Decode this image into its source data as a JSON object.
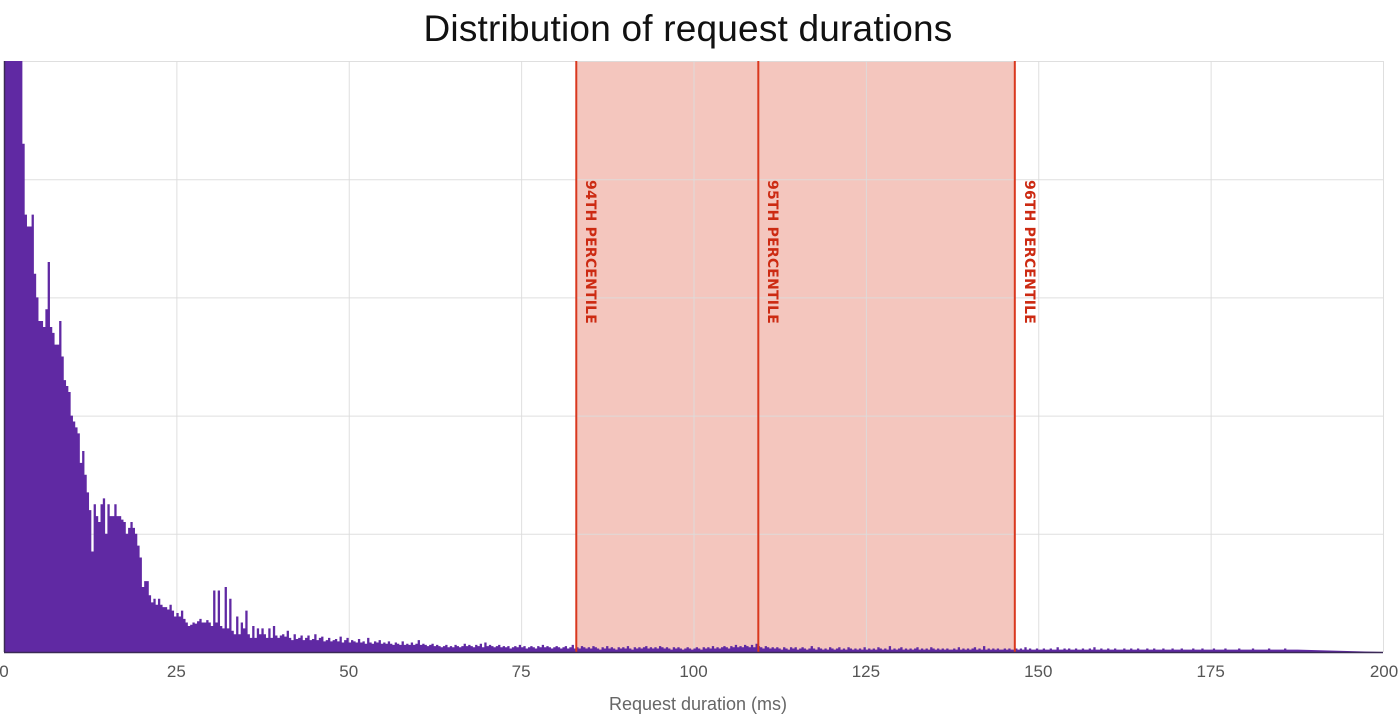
{
  "chart_data": {
    "type": "bar",
    "subtype": "histogram",
    "title": "Distribution of request durations",
    "xlabel": "Request duration (ms)",
    "ylabel": "",
    "xlim": [
      0,
      200
    ],
    "ylim": [
      0,
      5
    ],
    "y_units": "relative count (gridline units; y tick labels not shown)",
    "grid": true,
    "legend": null,
    "x_ticks": [
      "0",
      "25",
      "50",
      "75",
      "100",
      "125",
      "150",
      "175",
      "200"
    ],
    "x_tick_values": [
      0,
      25,
      50,
      75,
      100,
      125,
      150,
      175,
      200
    ],
    "y_gridlines": 5,
    "bin_width_ms": 0.3333,
    "bin_start_ms": 0,
    "bar_color": "#6029a3",
    "values": [
      9,
      9,
      9,
      9,
      9,
      9,
      9,
      9,
      4.3,
      3.7,
      3.6,
      3.6,
      3.7,
      3.2,
      3.0,
      2.8,
      2.8,
      2.75,
      2.9,
      3.3,
      2.75,
      2.7,
      2.6,
      2.6,
      2.8,
      2.5,
      2.3,
      2.25,
      2.2,
      2.0,
      1.95,
      1.9,
      1.85,
      1.6,
      1.7,
      1.5,
      1.35,
      1.2,
      0.85,
      1.25,
      1.15,
      1.1,
      1.25,
      1.3,
      1.0,
      1.25,
      1.15,
      1.15,
      1.25,
      1.15,
      1.15,
      1.12,
      1.1,
      1.0,
      1.05,
      1.1,
      1.05,
      1.0,
      0.9,
      0.8,
      0.55,
      0.6,
      0.6,
      0.48,
      0.42,
      0.45,
      0.4,
      0.45,
      0.4,
      0.38,
      0.38,
      0.36,
      0.4,
      0.35,
      0.3,
      0.33,
      0.3,
      0.35,
      0.28,
      0.25,
      0.22,
      0.23,
      0.25,
      0.24,
      0.26,
      0.28,
      0.25,
      0.25,
      0.27,
      0.25,
      0.22,
      0.52,
      0.25,
      0.52,
      0.22,
      0.2,
      0.55,
      0.2,
      0.45,
      0.18,
      0.15,
      0.3,
      0.15,
      0.25,
      0.2,
      0.35,
      0.15,
      0.12,
      0.22,
      0.12,
      0.2,
      0.15,
      0.2,
      0.15,
      0.12,
      0.2,
      0.12,
      0.22,
      0.14,
      0.12,
      0.14,
      0.15,
      0.13,
      0.18,
      0.12,
      0.1,
      0.15,
      0.11,
      0.12,
      0.14,
      0.1,
      0.12,
      0.14,
      0.1,
      0.11,
      0.15,
      0.1,
      0.12,
      0.13,
      0.09,
      0.1,
      0.12,
      0.09,
      0.1,
      0.11,
      0.09,
      0.13,
      0.08,
      0.1,
      0.12,
      0.08,
      0.1,
      0.09,
      0.08,
      0.11,
      0.08,
      0.09,
      0.07,
      0.12,
      0.08,
      0.07,
      0.09,
      0.08,
      0.1,
      0.07,
      0.08,
      0.07,
      0.09,
      0.07,
      0.06,
      0.08,
      0.07,
      0.06,
      0.09,
      0.06,
      0.07,
      0.06,
      0.08,
      0.06,
      0.07,
      0.1,
      0.06,
      0.07,
      0.06,
      0.05,
      0.06,
      0.07,
      0.05,
      0.06,
      0.05,
      0.04,
      0.05,
      0.06,
      0.04,
      0.05,
      0.04,
      0.06,
      0.05,
      0.04,
      0.05,
      0.07,
      0.05,
      0.06,
      0.05,
      0.04,
      0.06,
      0.05,
      0.07,
      0.04,
      0.08,
      0.05,
      0.06,
      0.05,
      0.04,
      0.05,
      0.06,
      0.04,
      0.05,
      0.04,
      0.05,
      0.03,
      0.04,
      0.05,
      0.04,
      0.06,
      0.04,
      0.05,
      0.03,
      0.04,
      0.05,
      0.04,
      0.03,
      0.05,
      0.04,
      0.06,
      0.04,
      0.05,
      0.04,
      0.03,
      0.04,
      0.05,
      0.04,
      0.03,
      0.04,
      0.05,
      0.03,
      0.04,
      0.06,
      0.03,
      0.04,
      0.03,
      0.05,
      0.04,
      0.03,
      0.04,
      0.03,
      0.05,
      0.04,
      0.03,
      0.02,
      0.04,
      0.03,
      0.05,
      0.03,
      0.04,
      0.03,
      0.02,
      0.04,
      0.03,
      0.04,
      0.03,
      0.05,
      0.03,
      0.02,
      0.04,
      0.03,
      0.04,
      0.03,
      0.04,
      0.05,
      0.03,
      0.04,
      0.03,
      0.04,
      0.03,
      0.05,
      0.04,
      0.03,
      0.04,
      0.03,
      0.02,
      0.04,
      0.03,
      0.04,
      0.03,
      0.02,
      0.03,
      0.04,
      0.03,
      0.02,
      0.03,
      0.04,
      0.03,
      0.02,
      0.04,
      0.03,
      0.04,
      0.03,
      0.05,
      0.03,
      0.04,
      0.03,
      0.04,
      0.05,
      0.04,
      0.03,
      0.05,
      0.04,
      0.06,
      0.04,
      0.05,
      0.04,
      0.06,
      0.05,
      0.04,
      0.06,
      0.04,
      0.07,
      0.05,
      0.04,
      0.03,
      0.05,
      0.04,
      0.03,
      0.04,
      0.03,
      0.04,
      0.03,
      0.02,
      0.04,
      0.03,
      0.02,
      0.04,
      0.03,
      0.04,
      0.02,
      0.03,
      0.04,
      0.03,
      0.02,
      0.03,
      0.05,
      0.03,
      0.02,
      0.04,
      0.03,
      0.02,
      0.03,
      0.02,
      0.04,
      0.03,
      0.02,
      0.03,
      0.04,
      0.02,
      0.03,
      0.02,
      0.04,
      0.03,
      0.02,
      0.03,
      0.02,
      0.03,
      0.02,
      0.04,
      0.02,
      0.03,
      0.02,
      0.03,
      0.02,
      0.04,
      0.03,
      0.02,
      0.03,
      0.02,
      0.05,
      0.02,
      0.03,
      0.02,
      0.03,
      0.04,
      0.02,
      0.03,
      0.02,
      0.03,
      0.02,
      0.03,
      0.04,
      0.02,
      0.03,
      0.02,
      0.03,
      0.02,
      0.04,
      0.03,
      0.02,
      0.03,
      0.02,
      0.03,
      0.02,
      0.03,
      0.02,
      0.02,
      0.03,
      0.02,
      0.04,
      0.02,
      0.03,
      0.02,
      0.03,
      0.02,
      0.03,
      0.04,
      0.02,
      0.03,
      0.02,
      0.05,
      0.02,
      0.03,
      0.02,
      0.03,
      0.02,
      0.03,
      0.02,
      0.02,
      0.03,
      0.02,
      0.03,
      0.02,
      0.02,
      0.03,
      0.02,
      0.03,
      0.02,
      0.04,
      0.02,
      0.03,
      0.02,
      0.02,
      0.03,
      0.02,
      0.02,
      0.03,
      0.02,
      0.02,
      0.03,
      0.02,
      0.02,
      0.04,
      0.02,
      0.02,
      0.03,
      0.02,
      0.03,
      0.02,
      0.02,
      0.03,
      0.02,
      0.02,
      0.03,
      0.02,
      0.02,
      0.03,
      0.02,
      0.04,
      0.02,
      0.02,
      0.03,
      0.02,
      0.02,
      0.03,
      0.02,
      0.02,
      0.03,
      0.02,
      0.02,
      0.02,
      0.03,
      0.02,
      0.02,
      0.03,
      0.02,
      0.02,
      0.03,
      0.02,
      0.02,
      0.02,
      0.03,
      0.02,
      0.02,
      0.03,
      0.02,
      0.02,
      0.02,
      0.03,
      0.02,
      0.02,
      0.02,
      0.03,
      0.02,
      0.02,
      0.02,
      0.03,
      0.02,
      0.02,
      0.02,
      0.02,
      0.03,
      0.02,
      0.02,
      0.02,
      0.03,
      0.02,
      0.02,
      0.02,
      0.02,
      0.03,
      0.02,
      0.02,
      0.02,
      0.02,
      0.03,
      0.02,
      0.02,
      0.02,
      0.02,
      0.02,
      0.03,
      0.02,
      0.02,
      0.02,
      0.02,
      0.02,
      0.03,
      0.02,
      0.02,
      0.02,
      0.02,
      0.02,
      0.02,
      0.03,
      0.02,
      0.02,
      0.02,
      0.02,
      0.02,
      0.02,
      0.03,
      0.02,
      0.02,
      0.02,
      0.02,
      0.02
    ],
    "percentiles": [
      {
        "label": "94TH PERCENTILE",
        "value_ms": 83.0
      },
      {
        "label": "95TH PERCENTILE",
        "value_ms": 109.4
      },
      {
        "label": "96TH PERCENTILE",
        "value_ms": 146.6
      }
    ],
    "shaded_range_ms": [
      83.0,
      146.6
    ],
    "colors": {
      "bars": "#6029a3",
      "percentile_line": "#d9381e",
      "percentile_text": "#cc2a12",
      "shaded_band": "#f4c6be",
      "grid": "#dcdcdc",
      "axis": "#3a2a55"
    }
  }
}
